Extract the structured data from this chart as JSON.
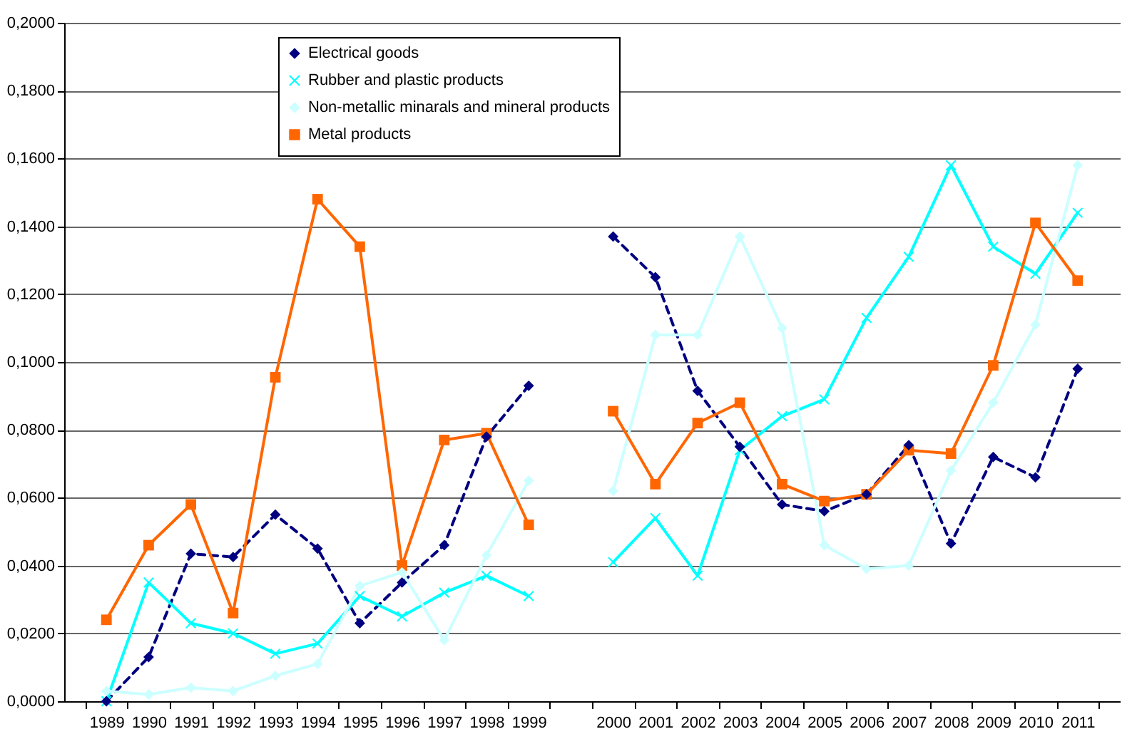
{
  "chart_data": {
    "type": "line",
    "categories": [
      "1989",
      "1990",
      "1991",
      "1992",
      "1993",
      "1994",
      "1995",
      "1996",
      "1997",
      "1998",
      "1999",
      null,
      "2000",
      "2001",
      "2002",
      "2003",
      "2004",
      "2005",
      "2006",
      "2007",
      "2008",
      "2009",
      "2010",
      "2011"
    ],
    "series": [
      {
        "name": "Electrical goods",
        "color": "#000080",
        "marker": "diamond",
        "line_style": "dashed",
        "values": [
          0.0,
          0.013,
          0.0435,
          0.0425,
          0.055,
          0.045,
          0.023,
          0.035,
          0.046,
          0.078,
          0.093,
          null,
          0.137,
          0.125,
          0.0915,
          0.075,
          0.058,
          0.056,
          0.061,
          0.0755,
          0.0465,
          0.072,
          0.066,
          0.098
        ]
      },
      {
        "name": "Rubber and plastic products",
        "color": "#00ffff",
        "marker": "cross",
        "line_style": "solid",
        "values": [
          0.0,
          0.035,
          0.023,
          0.02,
          0.014,
          0.017,
          0.031,
          0.025,
          0.032,
          0.037,
          0.031,
          null,
          0.041,
          0.054,
          0.037,
          0.074,
          0.084,
          0.089,
          0.113,
          0.131,
          0.158,
          0.134,
          0.126,
          0.144
        ]
      },
      {
        "name": "Non-metallic minarals and mineral products",
        "color": "#ccffff",
        "marker": "diamond",
        "line_style": "solid",
        "values": [
          0.003,
          0.002,
          0.004,
          0.003,
          0.0075,
          0.011,
          0.034,
          0.038,
          0.018,
          0.043,
          0.065,
          null,
          0.062,
          0.108,
          0.108,
          0.137,
          0.11,
          0.046,
          0.039,
          0.04,
          0.068,
          0.088,
          0.111,
          0.158
        ]
      },
      {
        "name": "Metal products",
        "color": "#ff6600",
        "marker": "square",
        "line_style": "solid",
        "values": [
          0.024,
          0.046,
          0.058,
          0.026,
          0.0955,
          0.148,
          0.134,
          0.04,
          0.077,
          0.079,
          0.052,
          null,
          0.0855,
          0.064,
          0.082,
          0.088,
          0.064,
          0.059,
          0.061,
          0.074,
          0.073,
          0.099,
          0.141,
          0.124
        ]
      }
    ],
    "ylim": [
      0,
      0.2
    ],
    "yticks": [
      {
        "value": 0,
        "label": "0,0000"
      },
      {
        "value": 0.02,
        "label": "0,0200"
      },
      {
        "value": 0.04,
        "label": "0,0400"
      },
      {
        "value": 0.06,
        "label": "0,0600"
      },
      {
        "value": 0.08,
        "label": "0,0800"
      },
      {
        "value": 0.1,
        "label": "0,1000"
      },
      {
        "value": 0.12,
        "label": "0,1200"
      },
      {
        "value": 0.14,
        "label": "0,1400"
      },
      {
        "value": 0.16,
        "label": "0,1600"
      },
      {
        "value": 0.18,
        "label": "0,1800"
      },
      {
        "value": 0.2,
        "label": "0,2000"
      }
    ],
    "grid": "y",
    "legend": "top left"
  }
}
